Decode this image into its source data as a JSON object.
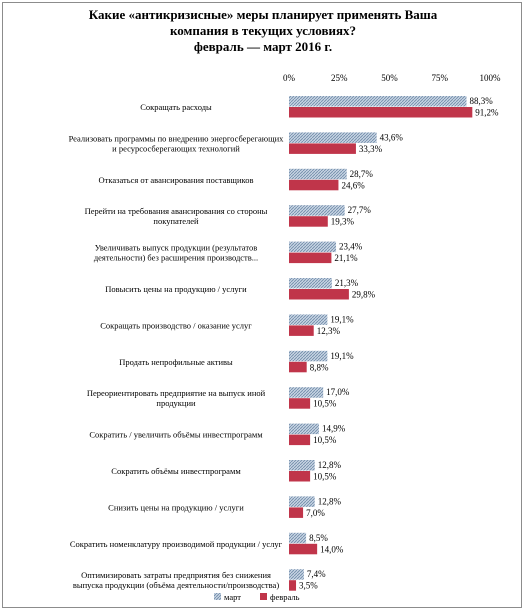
{
  "chart_data": {
    "type": "bar",
    "orientation": "horizontal",
    "title": [
      "Какие «антикризисные» меры планирует применять Ваша",
      "компания в текущих условиях?",
      "февраль — март 2016 г."
    ],
    "xlim": [
      0,
      100
    ],
    "ticks": [
      "0%",
      "25%",
      "50%",
      "75%",
      "100%"
    ],
    "tick_values": [
      0,
      25,
      50,
      75,
      100
    ],
    "grid": false,
    "legend_position": "bottom",
    "categories": [
      [
        "Сокращать расходы"
      ],
      [
        "Реализовать программы по внедрению энергосберегающих",
        "и ресурсосберегающих технологий"
      ],
      [
        "Отказаться от авансирования поставщиков"
      ],
      [
        "Перейти на требования авансирования со стороны",
        "покупателей"
      ],
      [
        "Увеличивать выпуск продукции (результатов",
        "деятельности) без расширения производств..."
      ],
      [
        "Повысить цены на продукцию / услуги"
      ],
      [
        "Сокращать производство / оказание услуг"
      ],
      [
        "Продать непрофильные активы"
      ],
      [
        "Переориентировать предприятие на выпуск иной",
        "продукции"
      ],
      [
        "Сократить / увеличить объёмы инвестпрограмм"
      ],
      [
        "Сократить объёмы инвестпрограмм"
      ],
      [
        "Снизить цены на продукцию / услуги"
      ],
      [
        "Сократить номенклатуру производимой продукции / услуг"
      ],
      [
        "Оптимизировать затраты предприятия без снижения",
        "выпуска продукции (объёма деятельности/производства)"
      ]
    ],
    "series": [
      {
        "name": "март",
        "color": "#9db3cc",
        "pattern": "hatched",
        "values": [
          88.3,
          43.6,
          28.7,
          27.7,
          23.4,
          21.3,
          19.1,
          19.1,
          17.0,
          14.9,
          12.8,
          12.8,
          8.5,
          7.4
        ],
        "labels": [
          "88,3%",
          "43,6%",
          "28,7%",
          "27,7%",
          "23,4%",
          "21,3%",
          "19,1%",
          "19,1%",
          "17,0%",
          "14,9%",
          "12,8%",
          "12,8%",
          "8,5%",
          "7,4%"
        ]
      },
      {
        "name": "февраль",
        "color": "#c0354a",
        "pattern": "solid",
        "values": [
          91.2,
          33.3,
          24.6,
          19.3,
          21.1,
          29.8,
          12.3,
          8.8,
          10.5,
          10.5,
          10.5,
          7.0,
          14.0,
          3.5
        ],
        "labels": [
          "91,2%",
          "33,3%",
          "24,6%",
          "19,3%",
          "21,1%",
          "29,8%",
          "12,3%",
          "8,8%",
          "10,5%",
          "10,5%",
          "10,5%",
          "7,0%",
          "14,0%",
          "3,5%"
        ]
      }
    ]
  }
}
